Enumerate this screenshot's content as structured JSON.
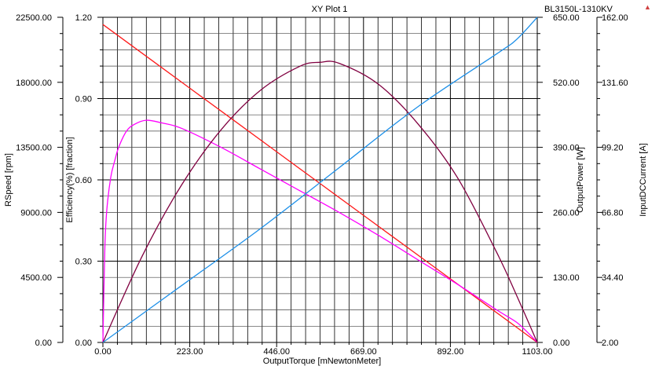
{
  "window": {
    "title": "XY Plot 1",
    "subtitle": "BL3150L-1310KV",
    "menu_icon": "triangle-down-icon"
  },
  "chart_data": {
    "type": "line",
    "title": "XY Plot 1",
    "subtitle": "BL3150L-1310KV",
    "xlabel": "OutputTorque [mNewtonMeter]",
    "xlim": [
      0,
      1103
    ],
    "x_ticks": [
      "0.00",
      "223.00",
      "446.00",
      "669.00",
      "892.00",
      "1103.00"
    ],
    "grid": true,
    "legend": "none",
    "axes": [
      {
        "id": "speed",
        "label": "RSpeed [rpm]",
        "side": "left-outer",
        "ylim": [
          0,
          22500
        ],
        "ticks": [
          "0.00",
          "4500.00",
          "9000.00",
          "13500.00",
          "18000.00",
          "22500.00"
        ]
      },
      {
        "id": "eff",
        "label": "Efficiency(%) [fraction]",
        "side": "left-inner",
        "ylim": [
          0,
          1.2
        ],
        "ticks": [
          "0.00",
          "0.30",
          "0.60",
          "0.90",
          "1.20"
        ]
      },
      {
        "id": "power",
        "label": "OutputPower [W]",
        "side": "right-inner",
        "ylim": [
          0,
          650
        ],
        "ticks": [
          "0.00",
          "130.00",
          "260.00",
          "390.00",
          "520.00",
          "650.00"
        ]
      },
      {
        "id": "current",
        "label": "InputDCCurrent [A]",
        "side": "right-outer",
        "ylim": [
          2,
          162
        ],
        "ticks": [
          "2.00",
          "34.40",
          "66.80",
          "99.20",
          "131.60",
          "162.00"
        ]
      }
    ],
    "series": [
      {
        "axis": "speed",
        "color": "#ff1a1a",
        "x": [
          0,
          220,
          440,
          660,
          880,
          1103
        ],
        "values": [
          22000,
          17610,
          13220,
          8830,
          4450,
          0
        ]
      },
      {
        "axis": "eff",
        "color": "#ff00ff",
        "x": [
          0,
          5,
          10,
          20,
          30,
          40,
          60,
          80,
          110,
          150,
          200,
          300,
          400,
          500,
          600,
          700,
          800,
          900,
          1000,
          1050,
          1080,
          1103
        ],
        "values": [
          0,
          0.35,
          0.49,
          0.61,
          0.67,
          0.72,
          0.78,
          0.805,
          0.82,
          0.81,
          0.79,
          0.72,
          0.64,
          0.56,
          0.48,
          0.395,
          0.305,
          0.215,
          0.12,
          0.075,
          0.035,
          0
        ]
      },
      {
        "axis": "power",
        "color": "#800040",
        "x": [
          0,
          100,
          200,
          300,
          400,
          500,
          551.5,
          600,
          700,
          800,
          900,
          1000,
          1050,
          1103
        ],
        "values": [
          0,
          173,
          315,
          425,
          504,
          552,
          560,
          558,
          516,
          437,
          330,
          180,
          95,
          0
        ]
      },
      {
        "axis": "current",
        "color": "#1e90e8",
        "x": [
          0,
          200,
          400,
          600,
          800,
          1000,
          1050,
          1103
        ],
        "values": [
          2,
          30,
          58,
          88,
          118,
          144,
          151,
          162
        ]
      }
    ]
  }
}
